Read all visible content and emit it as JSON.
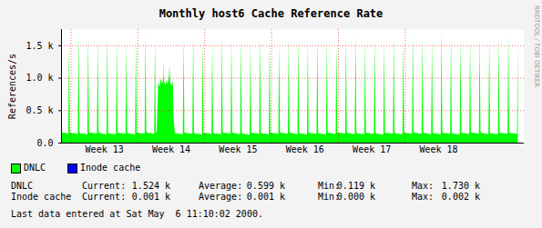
{
  "chart_data": {
    "type": "area",
    "title": "Monthly host6 Cache Reference Rate",
    "ylabel": "References/s",
    "side_text": "RRDTOOL / TOBI OETIKER",
    "footer": "Last data entered at Sat May  6 11:10:02 2000.",
    "grid": true,
    "legend": "bottom",
    "xlim": [
      12.857,
      19.78
    ],
    "ylim": [
      0,
      1750
    ],
    "xticks": [
      {
        "value": 13,
        "label": "Week 13"
      },
      {
        "value": 14,
        "label": "Week 14"
      },
      {
        "value": 15,
        "label": "Week 15"
      },
      {
        "value": 16,
        "label": "Week 16"
      },
      {
        "value": 17,
        "label": "Week 17"
      },
      {
        "value": 18,
        "label": "Week 18"
      }
    ],
    "yticks": [
      {
        "value": 0,
        "label": "0.0"
      },
      {
        "value": 500,
        "label": "0.5 k"
      },
      {
        "value": 1000,
        "label": "1.0 k"
      },
      {
        "value": 1500,
        "label": "1.5 k"
      }
    ],
    "stats_labels": [
      "Current:",
      "Average:",
      "Min:",
      "Max:"
    ],
    "x": [
      12.857,
      12.965,
      12.977,
      12.989,
      13.0,
      13.108,
      13.12,
      13.132,
      13.143,
      13.251,
      13.263,
      13.275,
      13.286,
      13.394,
      13.406,
      13.418,
      13.429,
      13.537,
      13.549,
      13.561,
      13.571,
      13.679,
      13.691,
      13.703,
      13.714,
      13.822,
      13.834,
      13.846,
      13.857,
      13.965,
      13.977,
      13.989,
      14.0,
      14.108,
      14.12,
      14.132,
      14.143,
      14.251,
      14.263,
      14.275,
      14.286,
      14.3,
      14.31,
      14.33,
      14.35,
      14.37,
      14.39,
      14.394,
      14.4,
      14.42,
      14.429,
      14.45,
      14.47,
      14.48,
      14.49,
      14.51,
      14.53,
      14.54,
      14.56,
      14.571,
      14.679,
      14.691,
      14.703,
      14.714,
      14.822,
      14.834,
      14.846,
      14.857,
      14.965,
      14.977,
      14.989,
      15.0,
      15.108,
      15.12,
      15.132,
      15.143,
      15.251,
      15.263,
      15.275,
      15.286,
      15.394,
      15.406,
      15.418,
      15.429,
      15.537,
      15.549,
      15.561,
      15.571,
      15.679,
      15.691,
      15.703,
      15.714,
      15.822,
      15.834,
      15.846,
      15.857,
      15.965,
      15.977,
      15.989,
      16.0,
      16.108,
      16.12,
      16.132,
      16.143,
      16.251,
      16.263,
      16.275,
      16.286,
      16.394,
      16.406,
      16.418,
      16.429,
      16.537,
      16.549,
      16.561,
      16.571,
      16.679,
      16.691,
      16.703,
      16.714,
      16.822,
      16.834,
      16.846,
      16.857,
      16.965,
      16.977,
      16.989,
      17.0,
      17.108,
      17.12,
      17.132,
      17.143,
      17.251,
      17.263,
      17.275,
      17.286,
      17.394,
      17.406,
      17.418,
      17.429,
      17.537,
      17.549,
      17.561,
      17.571,
      17.679,
      17.691,
      17.703,
      17.714,
      17.822,
      17.834,
      17.846,
      17.857,
      17.965,
      17.977,
      17.989,
      18.0,
      18.108,
      18.12,
      18.132,
      18.143,
      18.251,
      18.263,
      18.275,
      18.286,
      18.394,
      18.406,
      18.418,
      18.429,
      18.537,
      18.549,
      18.561,
      18.571,
      18.679,
      18.691,
      18.703,
      18.714,
      18.822,
      18.834,
      18.846,
      18.857,
      18.965,
      18.977,
      18.989,
      19.0,
      19.108,
      19.12,
      19.132,
      19.143,
      19.251,
      19.263,
      19.275,
      19.286,
      19.394,
      19.406,
      19.418,
      19.429,
      19.537,
      19.549,
      19.561,
      19.571,
      19.679,
      19.691
    ],
    "series": [
      {
        "name": "DNLC",
        "color": "#00ff00",
        "stats": [
          "1.524 k",
          "0.599 k",
          "0.119 k",
          "1.730 k"
        ],
        "values": [
          160,
          140,
          1480,
          170,
          150,
          135,
          1700,
          165,
          145,
          130,
          1610,
          160,
          155,
          140,
          1560,
          170,
          150,
          125,
          1640,
          160,
          140,
          130,
          1580,
          155,
          150,
          135,
          1520,
          165,
          145,
          130,
          1590,
          160,
          150,
          140,
          1660,
          170,
          155,
          135,
          1550,
          165,
          150,
          520,
          930,
          860,
          990,
          900,
          1010,
          1250,
          940,
          880,
          960,
          900,
          1000,
          1180,
          920,
          870,
          950,
          400,
          140,
          145,
          130,
          1600,
          160,
          150,
          135,
          1650,
          165,
          140,
          125,
          1570,
          155,
          150,
          135,
          1540,
          160,
          145,
          130,
          1620,
          165,
          155,
          140,
          1580,
          170,
          150,
          130,
          1600,
          160,
          140,
          119,
          1530,
          155,
          150,
          135,
          1640,
          165,
          145,
          130,
          1560,
          160,
          150,
          140,
          1500,
          170,
          155,
          135,
          1610,
          165,
          150,
          130,
          1590,
          160,
          145,
          125,
          1550,
          155,
          150,
          135,
          1620,
          165,
          140,
          130,
          1580,
          160,
          150,
          135,
          1530,
          165,
          155,
          140,
          1600,
          170,
          150,
          130,
          1650,
          160,
          145,
          130,
          1560,
          160,
          150,
          135,
          1590,
          165,
          140,
          125,
          1540,
          155,
          150,
          135,
          1620,
          165,
          145,
          130,
          1570,
          160,
          150,
          140,
          1700,
          170,
          155,
          135,
          1610,
          165,
          150,
          130,
          1580,
          160,
          145,
          130,
          1730,
          160,
          150,
          135,
          1640,
          165,
          140,
          125,
          1590,
          155,
          150,
          135,
          1560,
          165,
          155,
          140,
          1620,
          170,
          150,
          130,
          1570,
          160,
          145,
          130,
          1600,
          160,
          150,
          135,
          1650,
          165,
          150,
          135,
          1524
        ]
      },
      {
        "name": "Inode cache",
        "color": "#0000ff",
        "stats": [
          "0.001 k",
          "0.001 k",
          "0.000 k",
          "0.002 k"
        ],
        "values": [
          1,
          1,
          1,
          1,
          1,
          1,
          1,
          1,
          1,
          1,
          1,
          1,
          1,
          1,
          1,
          1,
          1,
          1,
          1,
          1,
          1,
          0,
          1,
          1,
          1,
          1,
          1,
          1,
          1,
          1,
          1,
          1,
          1,
          1,
          1,
          1,
          1,
          1,
          1,
          1,
          1,
          1,
          1,
          1,
          1,
          1,
          1,
          1,
          1,
          1,
          1,
          1,
          1,
          1,
          1,
          1,
          1,
          1,
          1,
          1,
          1,
          1,
          1,
          1,
          1,
          1,
          1,
          1,
          1,
          1,
          1,
          1,
          1,
          1,
          1,
          1,
          1,
          1,
          1,
          1,
          1,
          1,
          1,
          1,
          1,
          1,
          1,
          1,
          1,
          1,
          1,
          1,
          1,
          1,
          1,
          1,
          1,
          1,
          1,
          1,
          1,
          1,
          1,
          1,
          1,
          1,
          1,
          1,
          1,
          1,
          1,
          1,
          1,
          1,
          1,
          1,
          1,
          1,
          1,
          1,
          1,
          1,
          1,
          1,
          1,
          1,
          1,
          1,
          1,
          1,
          1,
          1,
          1,
          1,
          1,
          1,
          1,
          1,
          1,
          1,
          1,
          1,
          1,
          1,
          1,
          1,
          1,
          1,
          1,
          1,
          1,
          1,
          1,
          1,
          1,
          1,
          1,
          1,
          1,
          1,
          1,
          1,
          1,
          1,
          1,
          1,
          1,
          1,
          1,
          2,
          1,
          1,
          1,
          1,
          1,
          1,
          1,
          1,
          1,
          1,
          1,
          1,
          1,
          1,
          1,
          1,
          1,
          1,
          1,
          1,
          1,
          1,
          1,
          1,
          1,
          1,
          1,
          1,
          1,
          1,
          1,
          1
        ]
      }
    ]
  }
}
